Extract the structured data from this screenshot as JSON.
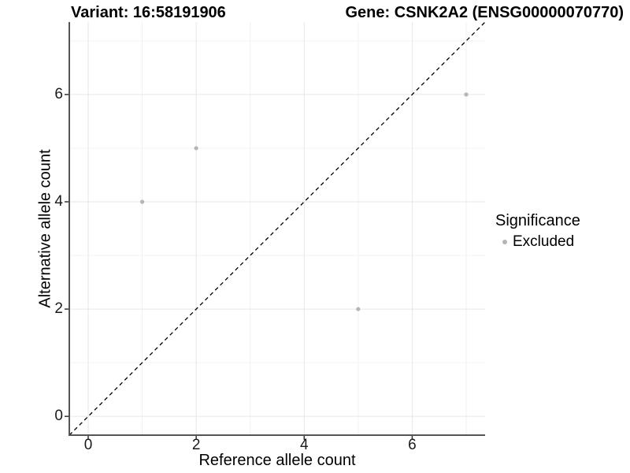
{
  "chart_data": {
    "type": "scatter",
    "titles": {
      "left": "Variant: 16:58191906",
      "right": "Gene: CSNK2A2 (ENSG00000070770)"
    },
    "xlabel": "Reference allele count",
    "ylabel": "Alternative allele count",
    "xlim": [
      -0.35,
      7.35
    ],
    "ylim": [
      -0.35,
      7.35
    ],
    "x_ticks": [
      0,
      2,
      4,
      6
    ],
    "y_ticks": [
      0,
      2,
      4,
      6
    ],
    "x_minor_ticks": [
      1,
      3,
      5,
      7
    ],
    "y_minor_ticks": [
      1,
      3,
      5,
      7
    ],
    "grid": "major+minor",
    "legend": {
      "position": "right",
      "title": "Significance",
      "items": [
        {
          "label": "Excluded",
          "color": "#b5b5b5"
        }
      ]
    },
    "series": [
      {
        "name": "Excluded",
        "color": "#b5b5b5",
        "marker": "circle",
        "points": [
          [
            1,
            4
          ],
          [
            2,
            5
          ],
          [
            5,
            2
          ],
          [
            7,
            6
          ]
        ]
      }
    ],
    "reference_line": {
      "slope": 1,
      "intercept": 0,
      "style": "dashed",
      "color": "#000000"
    },
    "colors": {
      "grid_major": "#e6e6e6",
      "grid_minor": "#f2f2f2",
      "axis_line": "#555555",
      "tick_mark": "#333333",
      "background": "#ffffff",
      "text": "#000000"
    }
  }
}
